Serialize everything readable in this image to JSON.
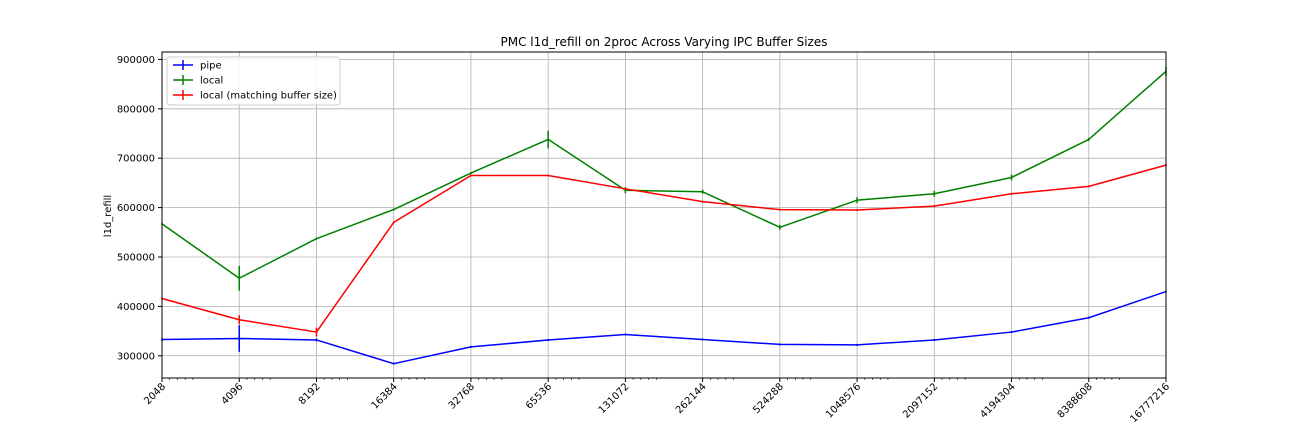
{
  "chart_data": {
    "type": "line",
    "title": "PMC l1d_refill on 2proc Across Varying IPC Buffer Sizes",
    "xlabel": "",
    "ylabel": "l1d_refill",
    "x_scale": "log2",
    "categories": [
      "2048",
      "4096",
      "8192",
      "16384",
      "32768",
      "65536",
      "131072",
      "262144",
      "524288",
      "1048576",
      "2097152",
      "4194304",
      "8388608",
      "16777216"
    ],
    "ylim": [
      255000,
      915000
    ],
    "yticks": [
      300000,
      400000,
      500000,
      600000,
      700000,
      800000,
      900000
    ],
    "ytick_labels": [
      "300000",
      "400000",
      "500000",
      "600000",
      "700000",
      "800000",
      "900000"
    ],
    "grid": true,
    "legend_position": "upper-left",
    "series": [
      {
        "name": "pipe",
        "color": "#0000ff",
        "values": [
          333000,
          335000,
          332000,
          284000,
          318000,
          332000,
          343000,
          333000,
          323000,
          322000,
          332000,
          348000,
          377000,
          430000
        ],
        "errors": [
          3000,
          27000,
          3000,
          2000,
          2000,
          2000,
          2000,
          2000,
          2000,
          2000,
          2000,
          2000,
          2000,
          2000
        ]
      },
      {
        "name": "local",
        "color": "#008000",
        "values": [
          567000,
          457000,
          537000,
          596000,
          670000,
          738000,
          635000,
          632000,
          560000,
          615000,
          628000,
          661000,
          738000,
          876000
        ],
        "errors": [
          2000,
          25000,
          2000,
          2000,
          2000,
          18000,
          6000,
          4000,
          5000,
          6000,
          6000,
          6000,
          3000,
          9000
        ]
      },
      {
        "name": "local (matching buffer size)",
        "color": "#ff0000",
        "values": [
          416000,
          373000,
          348000,
          570000,
          665000,
          665000,
          638000,
          612000,
          596000,
          595000,
          603000,
          628000,
          643000,
          686000
        ],
        "errors": [
          2000,
          9000,
          9000,
          2000,
          2000,
          2000,
          2000,
          2000,
          2000,
          2000,
          2000,
          2000,
          2000,
          2000
        ]
      }
    ]
  }
}
